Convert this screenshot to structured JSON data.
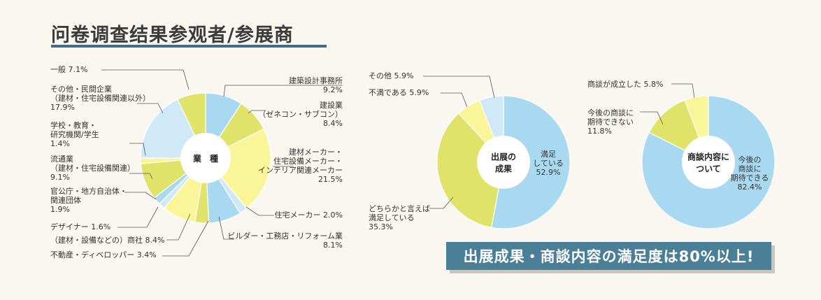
{
  "page": {
    "title": "问卷调查结果参观者/参展商",
    "banner": "出展成果・商談内容の満足度は80%以上!"
  },
  "colors": {
    "blue": "#a9d8f1",
    "yellow": "#fbf59a",
    "green": "#dfe36a",
    "pale_blue": "#cfe9f8",
    "accent": "#3c6f86"
  },
  "chart_data": [
    {
      "type": "pie",
      "center_label": "業　種",
      "donut": true,
      "slices": [
        {
          "label": "建築設計事務所",
          "value": 9.2,
          "color": "blue"
        },
        {
          "label": "建設業（ゼネコン・サブコン）",
          "value": 8.4,
          "color": "green"
        },
        {
          "label": "建材メーカー・住宅設備メーカー・インテリア関連メーカー",
          "value": 21.5,
          "color": "yellow"
        },
        {
          "label": "住宅メーカー",
          "value": 2.0,
          "color": "pale_blue"
        },
        {
          "label": "ビルダー・工務店・リフォーム業",
          "value": 8.1,
          "color": "blue"
        },
        {
          "label": "不動産・ディベロッパー",
          "value": 3.4,
          "color": "green"
        },
        {
          "label": "（建材・設備などの）商社",
          "value": 8.4,
          "color": "yellow"
        },
        {
          "label": "デザイナー",
          "value": 1.6,
          "color": "pale_blue"
        },
        {
          "label": "官公庁・地方自治体・関連団体",
          "value": 1.9,
          "color": "blue"
        },
        {
          "label": "流通業（建材・住宅設備関連）",
          "value": 9.1,
          "color": "green"
        },
        {
          "label": "学校・教育・研究機関/学生",
          "value": 1.4,
          "color": "yellow"
        },
        {
          "label": "その他・民間企業（建材・住宅設備関連以外）",
          "value": 17.9,
          "color": "pale_blue"
        },
        {
          "label": "一般",
          "value": 7.1,
          "color": "green"
        }
      ],
      "labels": [
        {
          "lines": [
            "建築設計事務所",
            "9.2%"
          ]
        },
        {
          "lines": [
            "建設業",
            "（ゼネコン・サブコン）",
            "8.4%"
          ]
        },
        {
          "lines": [
            "建材メーカー・",
            "住宅設備メーカー・",
            "インテリア関連メーカー",
            "21.5%"
          ]
        },
        {
          "lines": [
            "住宅メーカー 2.0%"
          ]
        },
        {
          "lines": [
            "ビルダー・工務店・リフォーム業",
            "8.1%"
          ]
        },
        {
          "lines": [
            "不動産・ディベロッパー 3.4%"
          ]
        },
        {
          "lines": [
            "（建材・設備などの）商社 8.4%"
          ]
        },
        {
          "lines": [
            "デザイナー 1.6%"
          ]
        },
        {
          "lines": [
            "官公庁・地方自治体・",
            "関連団体",
            "1.9%"
          ]
        },
        {
          "lines": [
            "流通業",
            "（建材・住宅設備関連）",
            "9.1%"
          ]
        },
        {
          "lines": [
            "学校・教育・",
            "研究機関/学生",
            "1.4%"
          ]
        },
        {
          "lines": [
            "その他・民間企業",
            "（建材・住宅設備関連以外）",
            "17.9%"
          ]
        },
        {
          "lines": [
            "一般 7.1%"
          ]
        }
      ]
    },
    {
      "type": "pie",
      "center_label": [
        "出展の",
        "成果"
      ],
      "donut": true,
      "slices": [
        {
          "label": "満足している",
          "value": 52.9,
          "color": "blue"
        },
        {
          "label": "どちらかと言えば満足している",
          "value": 35.3,
          "color": "green"
        },
        {
          "label": "不満である",
          "value": 5.9,
          "color": "yellow"
        },
        {
          "label": "その他",
          "value": 5.9,
          "color": "pale_blue"
        }
      ],
      "labels": [
        {
          "lines": [
            "満足",
            "している",
            "52.9%"
          ]
        },
        {
          "lines": [
            "どちらかと言えば",
            "満足している",
            "35.3%"
          ]
        },
        {
          "lines": [
            "不満である 5.9%"
          ]
        },
        {
          "lines": [
            "その他 5.9%"
          ]
        }
      ]
    },
    {
      "type": "pie",
      "center_label": [
        "商談内容に",
        "ついて"
      ],
      "donut": true,
      "slices": [
        {
          "label": "今後の商談に期待できる",
          "value": 82.4,
          "color": "blue"
        },
        {
          "label": "今後の商談に期待できない",
          "value": 11.8,
          "color": "green"
        },
        {
          "label": "商談が成立した",
          "value": 5.8,
          "color": "yellow"
        }
      ],
      "labels": [
        {
          "lines": [
            "今後の",
            "商談に",
            "期待できる",
            "82.4%"
          ]
        },
        {
          "lines": [
            "今後の商談に",
            "期待できない",
            "11.8%"
          ]
        },
        {
          "lines": [
            "商談が成立した 5.8%"
          ]
        }
      ]
    }
  ]
}
